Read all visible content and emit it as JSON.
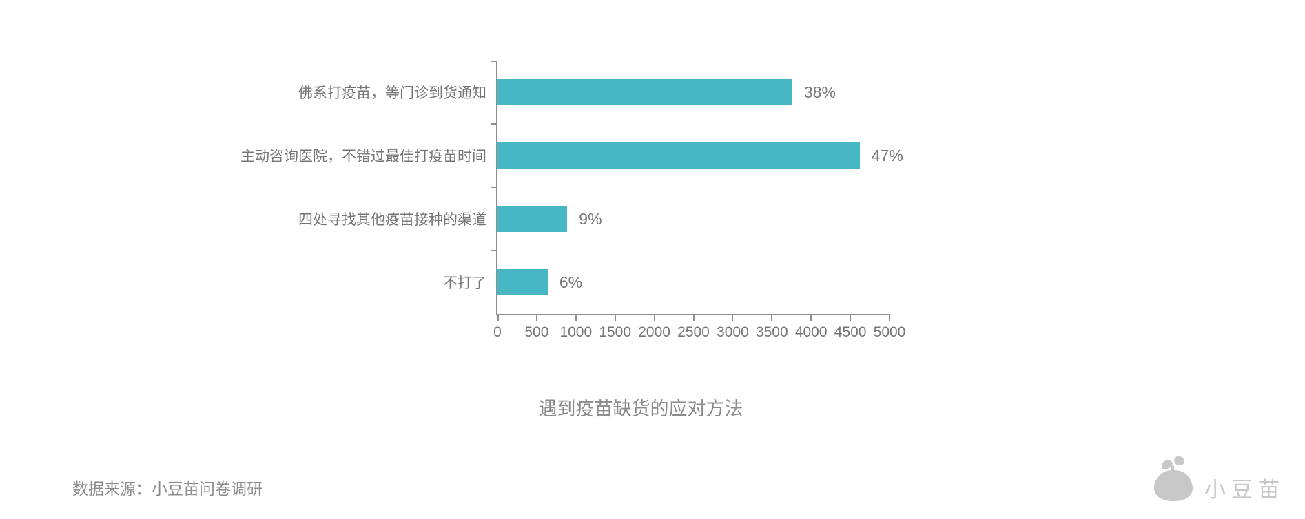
{
  "page": {
    "background": "#ffffff"
  },
  "chart_data": {
    "type": "bar",
    "orientation": "horizontal",
    "title": "遇到疫苗缺货的应对方法",
    "categories": [
      "佛系打疫苗，等门诊到货通知",
      "主动咨询医院，不错过最佳打疫苗时间",
      "四处寻找其他疫苗接种的渠道",
      "不打了"
    ],
    "values": [
      3760,
      4620,
      890,
      640
    ],
    "value_labels": [
      "38%",
      "47%",
      "9%",
      "6%"
    ],
    "xlim": [
      0,
      5000
    ],
    "x_ticks": [
      0,
      500,
      1000,
      1500,
      2000,
      2500,
      3000,
      3500,
      4000,
      4500,
      5000
    ],
    "bar_color": "#46b7c3",
    "axis_color": "#8f8f8f",
    "label_color": "#757575",
    "grid": false,
    "legend": null
  },
  "footer": {
    "source_text": "数据来源：小豆苗问卷调研"
  },
  "branding": {
    "logo_text": "小豆苗",
    "logo_icon": "sprout-bean-icon",
    "logo_color": "#c8c8c8"
  }
}
